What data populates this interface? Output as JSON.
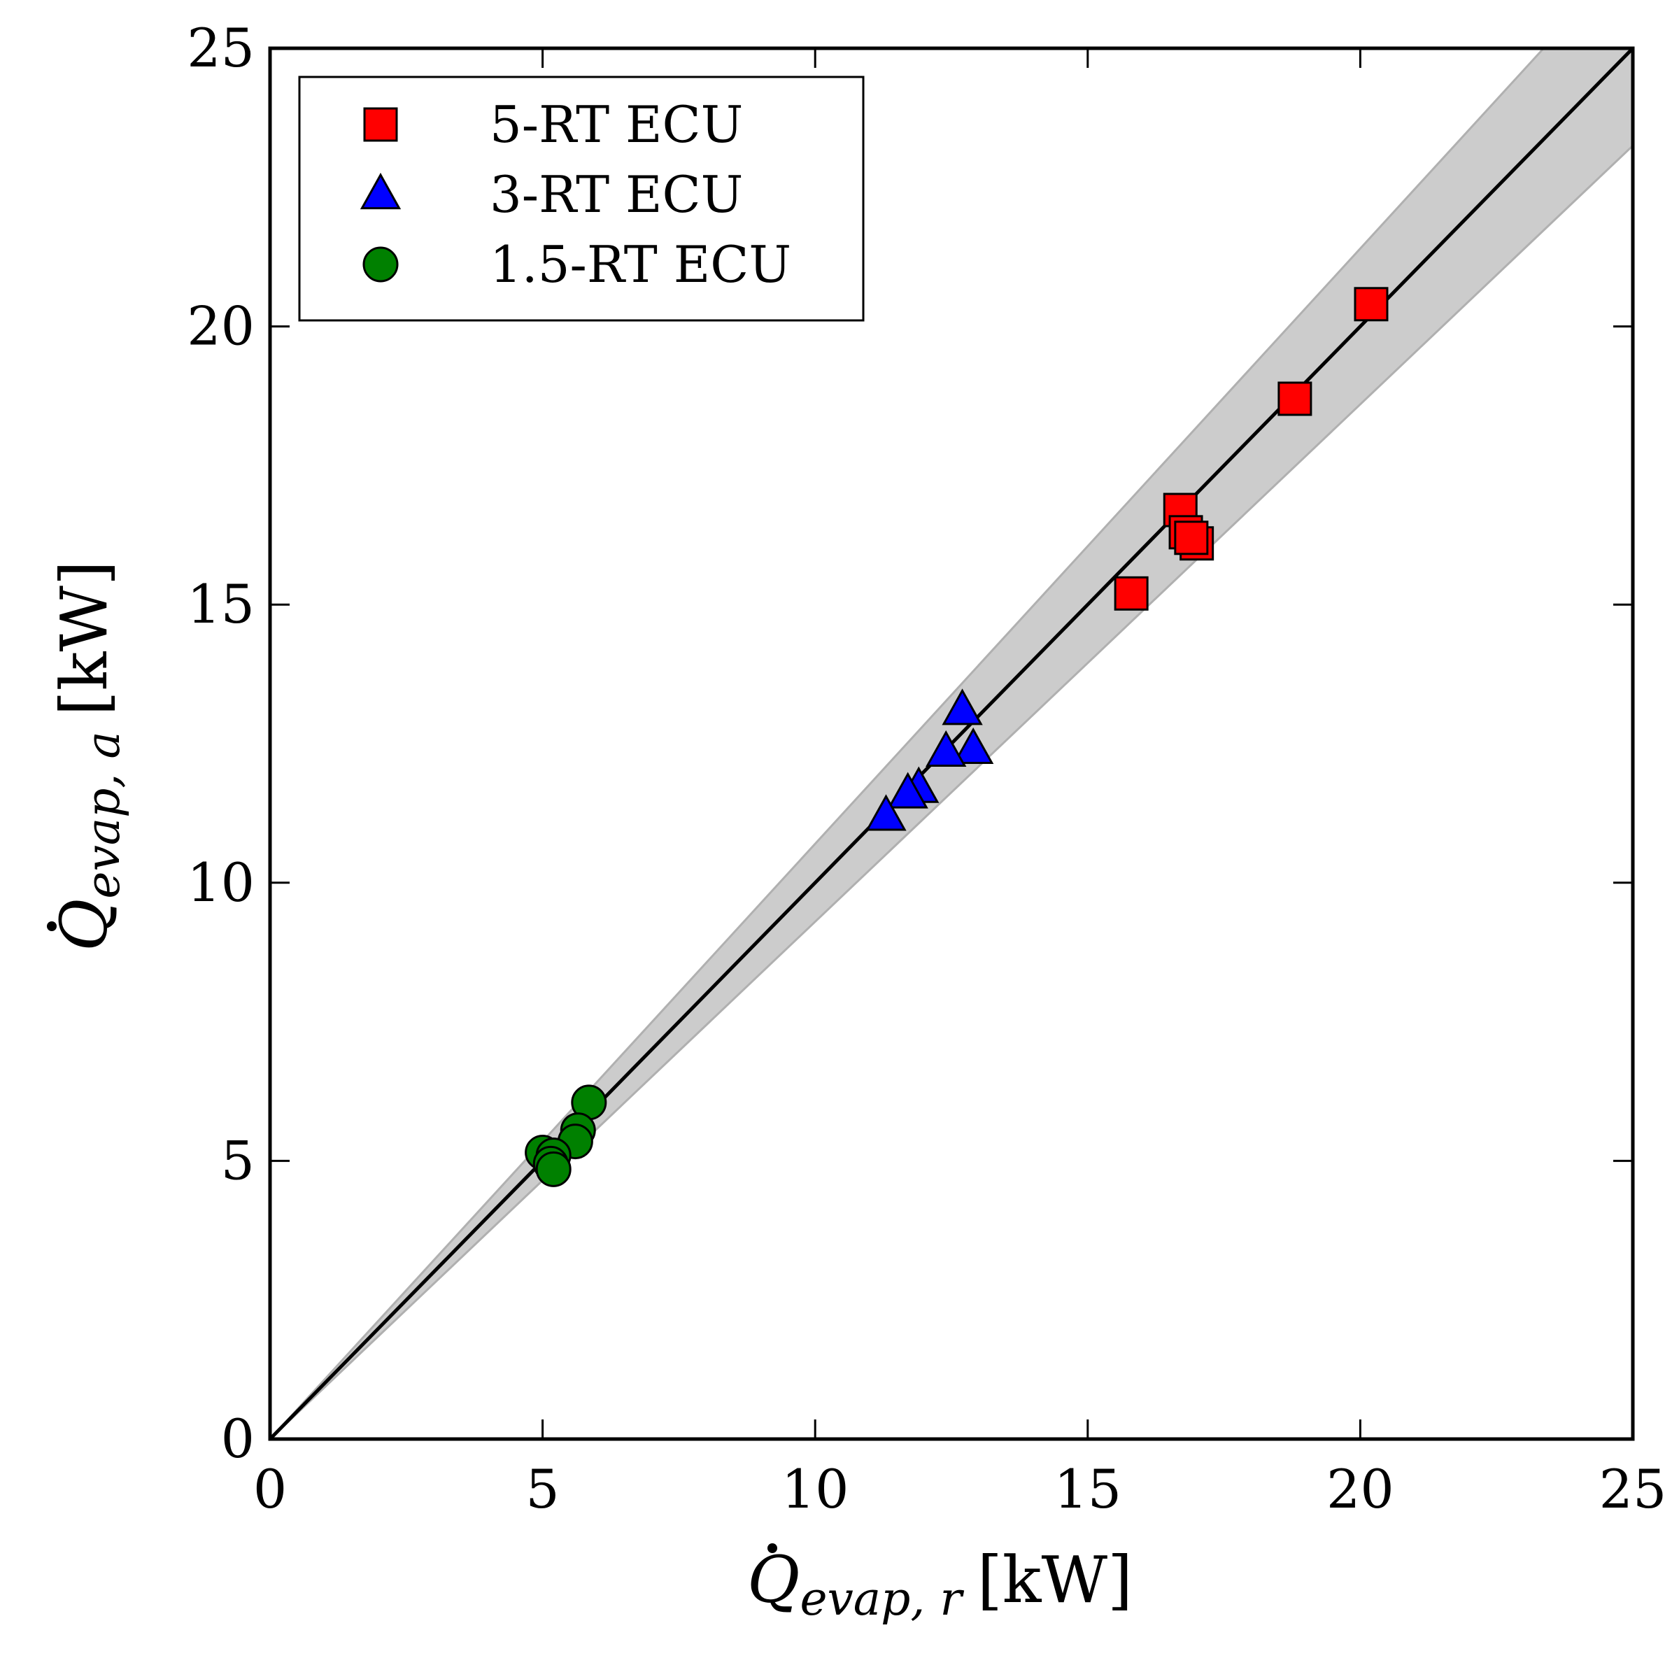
{
  "chart_data": {
    "type": "scatter",
    "xlabel": {
      "symbol": "Q",
      "sub": "evap, r",
      "unit": "[kW]"
    },
    "ylabel": {
      "symbol": "Q",
      "sub": "evap, a",
      "unit": "[kW]"
    },
    "xlim": [
      0,
      25
    ],
    "ylim": [
      0,
      25
    ],
    "xticks": [
      "0",
      "5",
      "10",
      "15",
      "20",
      "25"
    ],
    "yticks": [
      "0",
      "5",
      "10",
      "15",
      "20",
      "25"
    ],
    "grid": false,
    "legend_position": "top-left",
    "reference_line": {
      "slope": 1
    },
    "band": {
      "upper_slope": 1.07,
      "lower_slope": 0.93,
      "color": "#cccccc"
    },
    "series": [
      {
        "name": "5-RT ECU",
        "marker": "square",
        "color": "#ff0000",
        "points": [
          [
            20.2,
            20.4
          ],
          [
            18.8,
            18.7
          ],
          [
            16.7,
            16.7
          ],
          [
            16.8,
            16.3
          ],
          [
            17.0,
            16.1
          ],
          [
            16.9,
            16.2
          ],
          [
            15.8,
            15.2
          ]
        ]
      },
      {
        "name": "3-RT ECU",
        "marker": "triangle",
        "color": "#0000ff",
        "points": [
          [
            12.7,
            13.1
          ],
          [
            12.9,
            12.4
          ],
          [
            12.4,
            12.35
          ],
          [
            11.9,
            11.7
          ],
          [
            11.7,
            11.6
          ],
          [
            11.3,
            11.2
          ]
        ]
      },
      {
        "name": "1.5-RT ECU",
        "marker": "circle",
        "color": "#008000",
        "points": [
          [
            5.85,
            6.05
          ],
          [
            5.65,
            5.55
          ],
          [
            5.6,
            5.35
          ],
          [
            5.0,
            5.15
          ],
          [
            5.2,
            5.1
          ],
          [
            5.15,
            4.95
          ],
          [
            5.2,
            4.85
          ]
        ]
      }
    ]
  }
}
